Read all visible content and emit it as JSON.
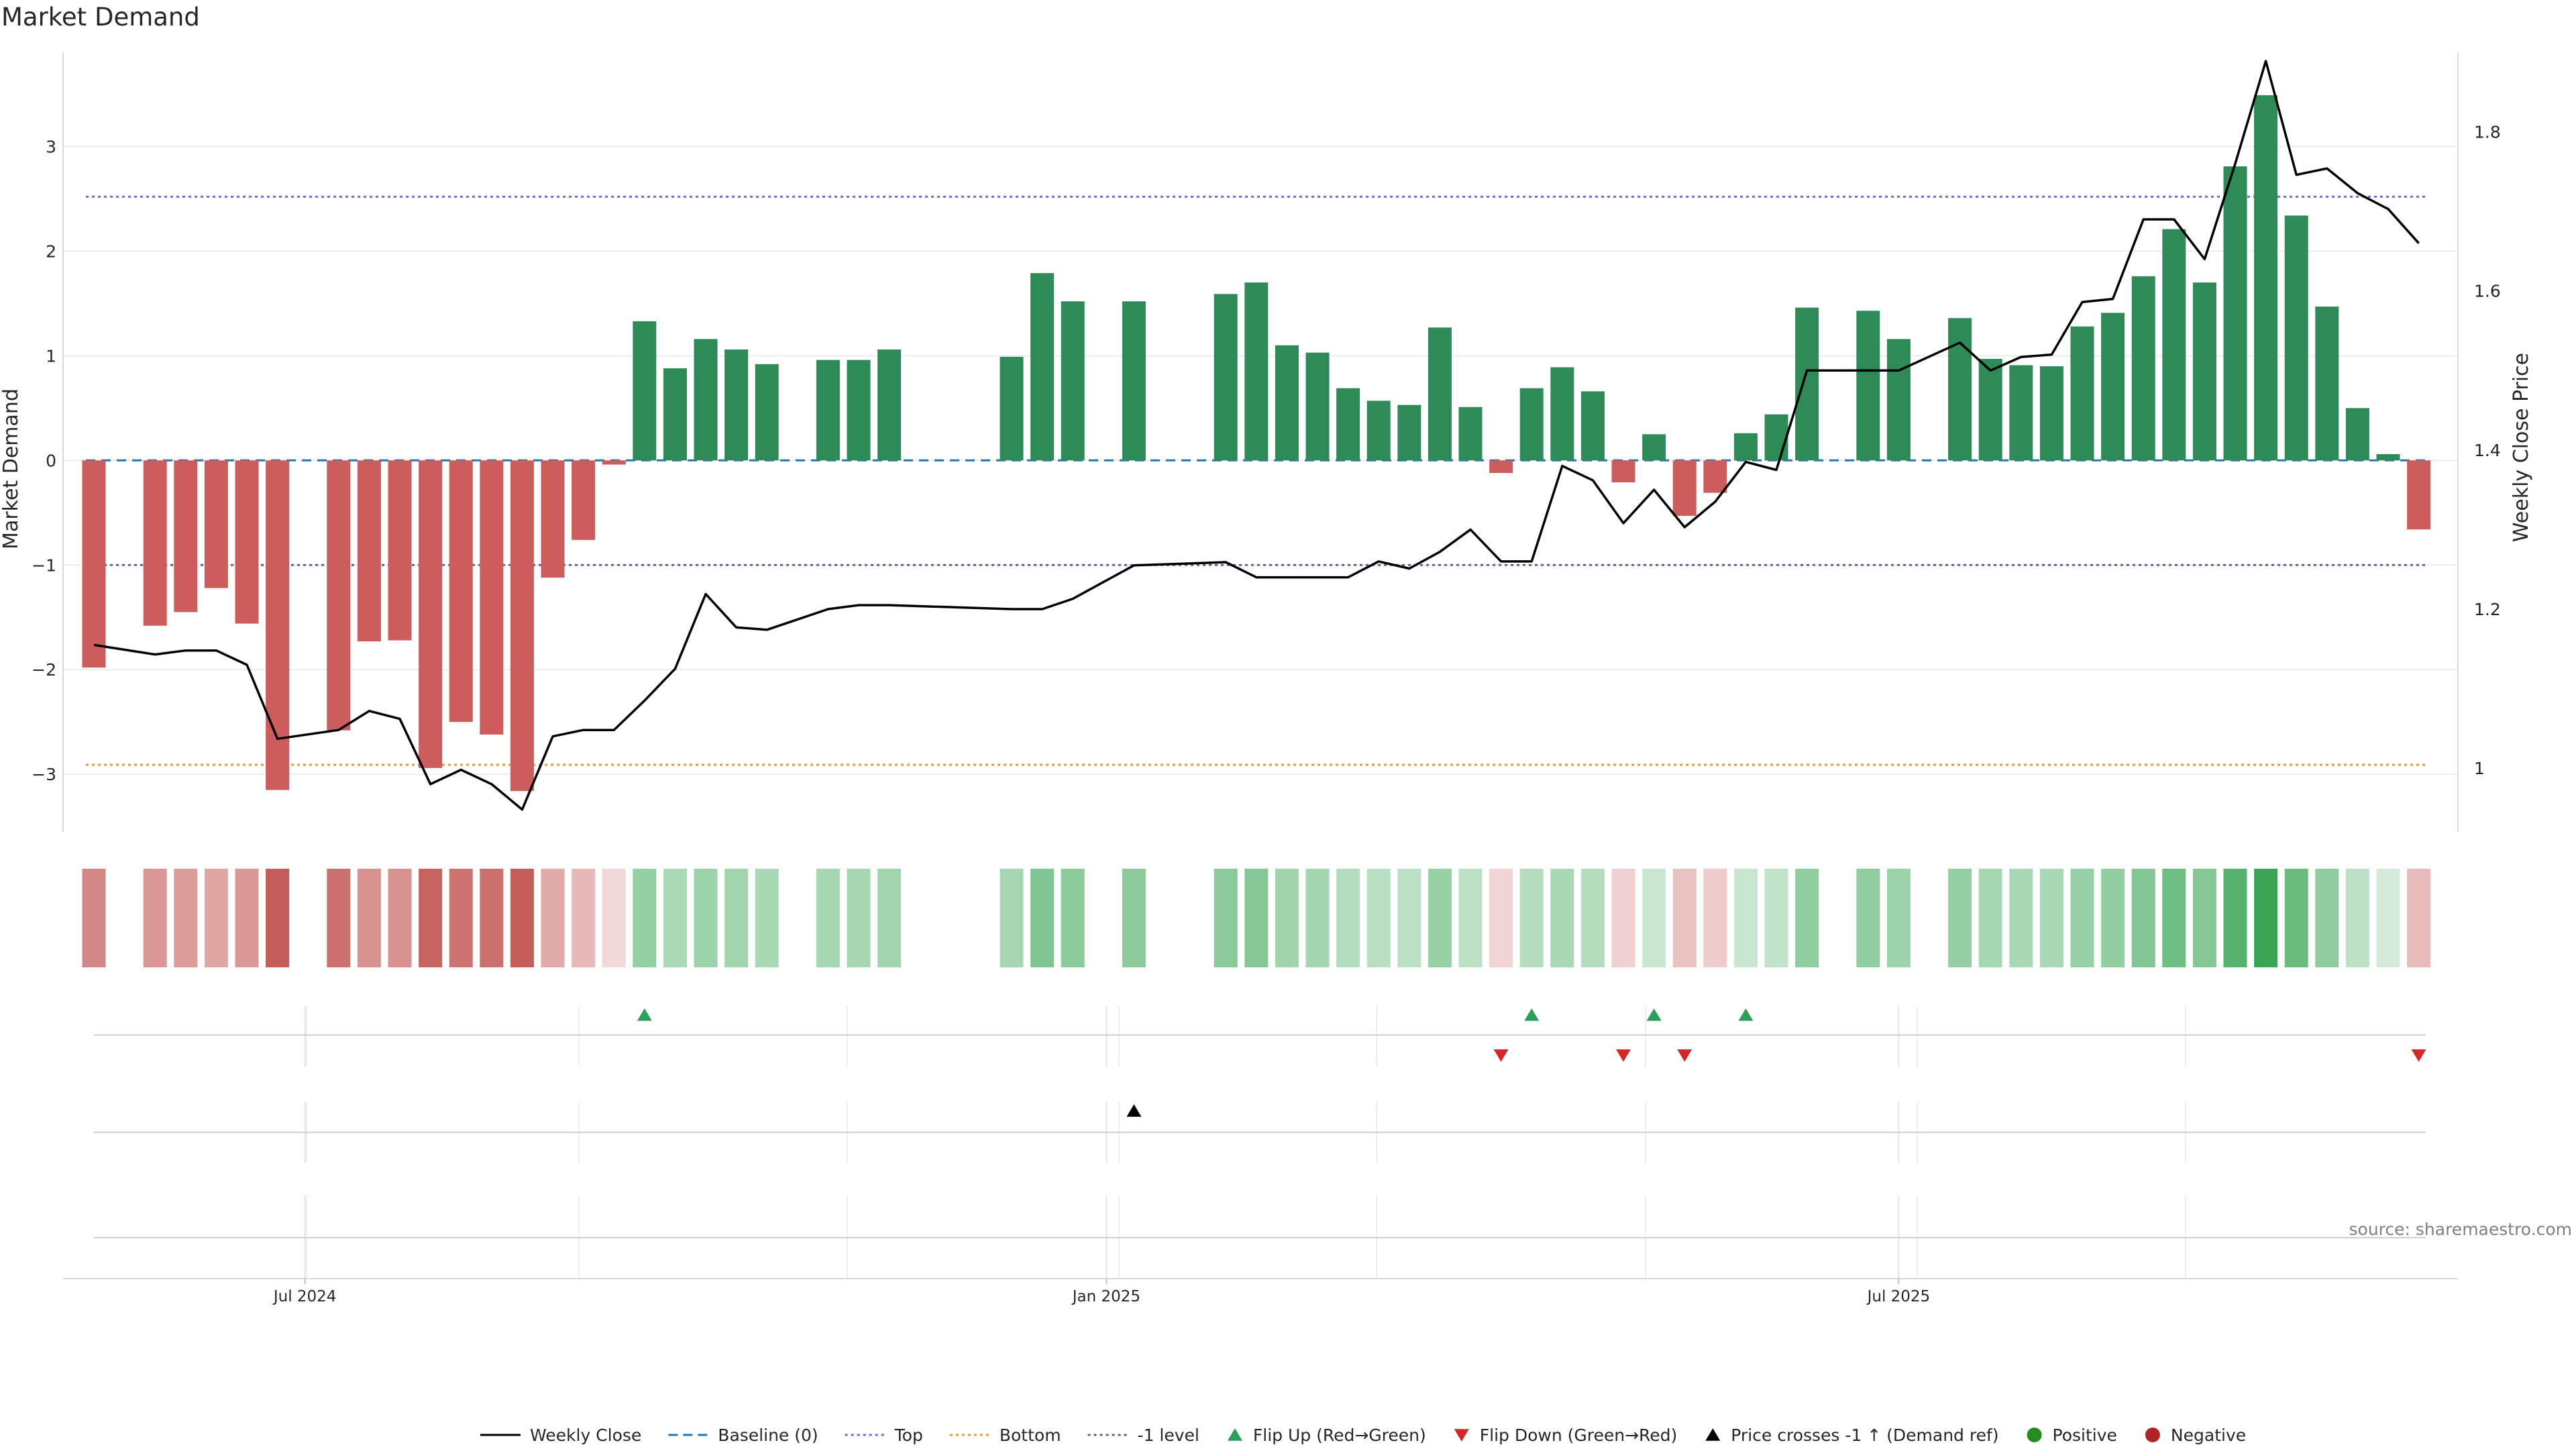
{
  "title": "Market Demand",
  "source": "source: sharemaestro.com",
  "colors": {
    "positive": "#2e8b57",
    "negative": "#cd5c5c",
    "price_line": "#000000",
    "baseline": "#1f77b4",
    "top": "#6b6bd6",
    "bottom": "#e69a2e",
    "minus_one": "#6a5a9a",
    "flip_up": "#2ca05a",
    "flip_down": "#d62728",
    "cross": "#000000",
    "legend_positive": "#228b22",
    "legend_negative": "#b22222"
  },
  "legend": [
    {
      "label": "Weekly Close",
      "kind": "solid-line",
      "color": "#000000"
    },
    {
      "label": "Baseline (0)",
      "kind": "dashed-line",
      "color": "#1f77b4"
    },
    {
      "label": "Top",
      "kind": "dotted-line",
      "color": "#6b6bd6"
    },
    {
      "label": "Bottom",
      "kind": "dotted-line",
      "color": "#e69a2e"
    },
    {
      "label": "-1 level",
      "kind": "dotted-line",
      "color": "#6a5a9a"
    },
    {
      "label": "Flip Up (Red→Green)",
      "kind": "triangle-up",
      "color": "#2ca05a"
    },
    {
      "label": "Flip Down (Green→Red)",
      "kind": "triangle-down",
      "color": "#d62728"
    },
    {
      "label": "Price crosses -1 ↑ (Demand ref)",
      "kind": "triangle-up",
      "color": "#000000"
    },
    {
      "label": "Positive",
      "kind": "dot",
      "color": "#228b22"
    },
    {
      "label": "Negative",
      "kind": "dot",
      "color": "#b22222"
    }
  ],
  "chart_data": {
    "type": "bar",
    "title": "Market Demand",
    "ylabel": "Market Demand",
    "y2label": "Weekly Close Price",
    "ylim": [
      -3.55,
      3.9
    ],
    "y2lim": [
      0.92,
      1.9
    ],
    "yticks": [
      3,
      2,
      1,
      0,
      -1,
      -2,
      -3
    ],
    "ytick_labels": [
      "3",
      "2",
      "1",
      "0",
      "−1",
      "−2",
      "−3"
    ],
    "y2ticks": [
      1.8,
      1.6,
      1.4,
      1.2,
      1.0
    ],
    "y2tick_labels": [
      "1.8",
      "1.6",
      "1.4",
      "1.2",
      "1"
    ],
    "x_range": [
      -1,
      77
    ],
    "xticks": [
      {
        "label": "Jul 2024",
        "x": 6.9
      },
      {
        "label": "Jan 2025",
        "x": 33.1
      },
      {
        "label": "Jul 2025",
        "x": 59.0
      }
    ],
    "weeks": [
      {
        "i": 0,
        "demand": -1.98,
        "close": 1.155
      },
      {
        "i": 2,
        "demand": -1.58,
        "close": 1.143
      },
      {
        "i": 3,
        "demand": -1.45,
        "close": 1.148
      },
      {
        "i": 4,
        "demand": -1.22,
        "close": 1.148
      },
      {
        "i": 5,
        "demand": -1.56,
        "close": 1.13
      },
      {
        "i": 6,
        "demand": -3.15,
        "close": 1.037
      },
      {
        "i": 8,
        "demand": -2.58,
        "close": 1.048
      },
      {
        "i": 9,
        "demand": -1.73,
        "close": 1.072
      },
      {
        "i": 10,
        "demand": -1.72,
        "close": 1.062
      },
      {
        "i": 11,
        "demand": -2.94,
        "close": 0.98
      },
      {
        "i": 12,
        "demand": -2.5,
        "close": 0.998
      },
      {
        "i": 13,
        "demand": -2.62,
        "close": 0.98
      },
      {
        "i": 14,
        "demand": -3.16,
        "close": 0.948
      },
      {
        "i": 15,
        "demand": -1.12,
        "close": 1.04
      },
      {
        "i": 16,
        "demand": -0.76,
        "close": 1.048
      },
      {
        "i": 17,
        "demand": -0.04,
        "close": 1.048
      },
      {
        "i": 18,
        "demand": 1.33,
        "close": 1.085
      },
      {
        "i": 19,
        "demand": 0.88,
        "close": 1.125
      },
      {
        "i": 20,
        "demand": 1.16,
        "close": 1.219
      },
      {
        "i": 21,
        "demand": 1.06,
        "close": 1.177
      },
      {
        "i": 22,
        "demand": 0.92,
        "close": 1.174
      },
      {
        "i": 24,
        "demand": 0.96,
        "close": 1.2
      },
      {
        "i": 25,
        "demand": 0.96,
        "close": 1.205
      },
      {
        "i": 26,
        "demand": 1.06,
        "close": 1.205
      },
      {
        "i": 30,
        "demand": 0.99,
        "close": 1.2
      },
      {
        "i": 31,
        "demand": 1.79,
        "close": 1.2
      },
      {
        "i": 32,
        "demand": 1.52,
        "close": 1.213
      },
      {
        "i": 34,
        "demand": 1.52,
        "close": 1.255
      },
      {
        "i": 37,
        "demand": 1.59,
        "close": 1.259
      },
      {
        "i": 38,
        "demand": 1.7,
        "close": 1.24
      },
      {
        "i": 39,
        "demand": 1.1,
        "close": 1.24
      },
      {
        "i": 40,
        "demand": 1.03,
        "close": 1.24
      },
      {
        "i": 41,
        "demand": 0.69,
        "close": 1.24
      },
      {
        "i": 42,
        "demand": 0.57,
        "close": 1.26
      },
      {
        "i": 43,
        "demand": 0.53,
        "close": 1.251
      },
      {
        "i": 44,
        "demand": 1.27,
        "close": 1.272
      },
      {
        "i": 45,
        "demand": 0.51,
        "close": 1.3
      },
      {
        "i": 46,
        "demand": -0.12,
        "close": 1.26
      },
      {
        "i": 47,
        "demand": 0.69,
        "close": 1.26
      },
      {
        "i": 48,
        "demand": 0.89,
        "close": 1.38
      },
      {
        "i": 49,
        "demand": 0.66,
        "close": 1.362
      },
      {
        "i": 50,
        "demand": -0.21,
        "close": 1.308
      },
      {
        "i": 51,
        "demand": 0.25,
        "close": 1.35
      },
      {
        "i": 52,
        "demand": -0.53,
        "close": 1.303
      },
      {
        "i": 53,
        "demand": -0.31,
        "close": 1.335
      },
      {
        "i": 54,
        "demand": 0.26,
        "close": 1.385
      },
      {
        "i": 55,
        "demand": 0.44,
        "close": 1.375
      },
      {
        "i": 56,
        "demand": 1.46,
        "close": 1.5
      },
      {
        "i": 58,
        "demand": 1.43,
        "close": 1.5
      },
      {
        "i": 59,
        "demand": 1.16,
        "close": 1.5
      },
      {
        "i": 61,
        "demand": 1.36,
        "close": 1.535
      },
      {
        "i": 62,
        "demand": 0.97,
        "close": 1.5
      },
      {
        "i": 63,
        "demand": 0.91,
        "close": 1.517
      },
      {
        "i": 64,
        "demand": 0.9,
        "close": 1.52
      },
      {
        "i": 65,
        "demand": 1.28,
        "close": 1.586
      },
      {
        "i": 66,
        "demand": 1.41,
        "close": 1.59
      },
      {
        "i": 67,
        "demand": 1.76,
        "close": 1.69
      },
      {
        "i": 68,
        "demand": 2.21,
        "close": 1.69
      },
      {
        "i": 69,
        "demand": 1.7,
        "close": 1.64
      },
      {
        "i": 70,
        "demand": 2.81,
        "close": 1.76
      },
      {
        "i": 71,
        "demand": 3.49,
        "close": 1.889
      },
      {
        "i": 72,
        "demand": 2.34,
        "close": 1.746
      },
      {
        "i": 73,
        "demand": 1.47,
        "close": 1.754
      },
      {
        "i": 74,
        "demand": 0.5,
        "close": 1.723
      },
      {
        "i": 75,
        "demand": 0.06,
        "close": 1.703
      },
      {
        "i": 76,
        "demand": -0.66,
        "close": 1.66
      }
    ],
    "reference_lines": [
      {
        "name": "Baseline (0)",
        "y": 0.0
      },
      {
        "name": "Top",
        "y": 2.52
      },
      {
        "name": "Bottom",
        "y": -2.91
      },
      {
        "name": "-1 level",
        "y": -1.0
      }
    ],
    "flip_up": [
      18,
      47,
      51,
      54
    ],
    "flip_down": [
      46,
      50,
      52,
      76
    ],
    "price_cross_up": [
      34
    ]
  }
}
